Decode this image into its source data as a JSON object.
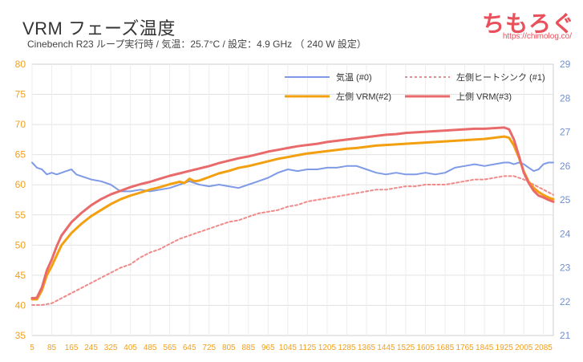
{
  "header": {
    "title": "VRM フェーズ温度",
    "subtitle": "Cinebench R23 ループ実行時 / 気温：25.7°C / 設定：4.9 GHz （ 240 W 設定）",
    "brand": "ちもろぐ",
    "url": "https://chimolog.co/"
  },
  "chart_data": {
    "type": "line",
    "x_ticks": [
      "5",
      "85",
      "165",
      "245",
      "325",
      "405",
      "485",
      "565",
      "645",
      "725",
      "805",
      "885",
      "965",
      "1045",
      "1125",
      "1205",
      "1285",
      "1365",
      "1445",
      "1525",
      "1605",
      "1685",
      "1765",
      "1845",
      "1925",
      "2005",
      "2085"
    ],
    "xlim": [
      5,
      2125
    ],
    "y_left": {
      "ylim": [
        35,
        80
      ],
      "ticks": [
        "35",
        "40",
        "45",
        "50",
        "55",
        "60",
        "65",
        "70",
        "75",
        "80"
      ]
    },
    "y_right": {
      "ylim": [
        21,
        29
      ],
      "ticks": [
        "21",
        "22",
        "23",
        "24",
        "25",
        "26",
        "27",
        "28",
        "29"
      ]
    },
    "grid": true,
    "legend_position": "top-right",
    "series": [
      {
        "name": "気温 (#0)",
        "axis": "right",
        "color": "#7f9ae6",
        "dash": false,
        "x": [
          5,
          25,
          45,
          65,
          85,
          105,
          125,
          145,
          165,
          185,
          205,
          245,
          285,
          325,
          345,
          365,
          405,
          445,
          485,
          525,
          565,
          605,
          645,
          685,
          725,
          765,
          805,
          845,
          885,
          925,
          965,
          1005,
          1045,
          1085,
          1125,
          1165,
          1205,
          1245,
          1285,
          1325,
          1365,
          1405,
          1445,
          1485,
          1525,
          1565,
          1605,
          1645,
          1685,
          1725,
          1765,
          1805,
          1845,
          1885,
          1925,
          1945,
          1965,
          1985,
          2005,
          2025,
          2045,
          2065,
          2085,
          2105,
          2125
        ],
        "y": [
          26.1,
          25.95,
          25.9,
          25.75,
          25.8,
          25.75,
          25.8,
          25.85,
          25.9,
          25.75,
          25.7,
          25.6,
          25.55,
          25.45,
          25.35,
          25.25,
          25.25,
          25.3,
          25.25,
          25.3,
          25.35,
          25.45,
          25.55,
          25.45,
          25.4,
          25.45,
          25.4,
          25.35,
          25.45,
          25.55,
          25.65,
          25.8,
          25.9,
          25.85,
          25.9,
          25.9,
          25.95,
          25.95,
          26.0,
          26.0,
          25.9,
          25.8,
          25.75,
          25.8,
          25.75,
          25.75,
          25.8,
          25.75,
          25.8,
          25.95,
          26.0,
          26.05,
          26.0,
          26.05,
          26.1,
          26.1,
          26.05,
          26.1,
          26.05,
          25.95,
          25.85,
          25.9,
          26.05,
          26.1,
          26.1
        ]
      },
      {
        "name": "左側ヒートシンク (#1)",
        "axis": "right",
        "color": "#ef8a8a",
        "dash": true,
        "x": [
          5,
          45,
          85,
          125,
          165,
          205,
          245,
          285,
          325,
          365,
          405,
          445,
          485,
          525,
          565,
          605,
          645,
          685,
          725,
          765,
          805,
          845,
          885,
          925,
          965,
          1005,
          1045,
          1085,
          1125,
          1165,
          1205,
          1245,
          1285,
          1325,
          1365,
          1405,
          1445,
          1485,
          1525,
          1565,
          1605,
          1645,
          1685,
          1725,
          1765,
          1805,
          1845,
          1885,
          1925,
          1965,
          2005,
          2045,
          2085,
          2125
        ],
        "y": [
          21.9,
          21.9,
          21.95,
          22.1,
          22.25,
          22.4,
          22.55,
          22.7,
          22.85,
          23.0,
          23.1,
          23.3,
          23.45,
          23.55,
          23.7,
          23.85,
          23.95,
          24.05,
          24.15,
          24.25,
          24.35,
          24.4,
          24.5,
          24.6,
          24.65,
          24.7,
          24.8,
          24.85,
          24.95,
          25.0,
          25.05,
          25.1,
          25.15,
          25.2,
          25.25,
          25.3,
          25.3,
          25.35,
          25.4,
          25.4,
          25.45,
          25.45,
          25.45,
          25.5,
          25.55,
          25.6,
          25.6,
          25.65,
          25.7,
          25.7,
          25.6,
          25.45,
          25.3,
          25.15
        ]
      },
      {
        "name": "左側 VRM(#2)",
        "axis": "left",
        "color": "#f2a010",
        "dash": false,
        "x": [
          5,
          15,
          25,
          45,
          65,
          85,
          105,
          125,
          165,
          205,
          245,
          285,
          325,
          365,
          405,
          445,
          485,
          525,
          565,
          605,
          625,
          645,
          665,
          685,
          725,
          765,
          805,
          845,
          885,
          925,
          965,
          1005,
          1045,
          1085,
          1125,
          1165,
          1205,
          1245,
          1285,
          1325,
          1365,
          1405,
          1445,
          1485,
          1525,
          1565,
          1605,
          1645,
          1685,
          1725,
          1765,
          1805,
          1845,
          1885,
          1925,
          1945,
          1965,
          1985,
          2005,
          2025,
          2045,
          2065,
          2085,
          2105,
          2125
        ],
        "y": [
          41.0,
          41.0,
          41.0,
          42.5,
          45.0,
          46.5,
          48.3,
          50.0,
          52.0,
          53.5,
          54.8,
          55.8,
          56.8,
          57.6,
          58.2,
          58.7,
          59.2,
          59.6,
          60.1,
          60.5,
          60.3,
          61.0,
          60.6,
          60.7,
          61.3,
          61.9,
          62.3,
          62.8,
          63.1,
          63.5,
          63.9,
          64.3,
          64.6,
          64.9,
          65.2,
          65.4,
          65.6,
          65.8,
          66.0,
          66.1,
          66.3,
          66.5,
          66.6,
          66.7,
          66.8,
          66.9,
          67.0,
          67.1,
          67.2,
          67.3,
          67.4,
          67.5,
          67.6,
          67.8,
          68.0,
          67.8,
          66.5,
          64.5,
          62.2,
          60.5,
          59.5,
          58.8,
          58.3,
          57.9,
          57.6
        ]
      },
      {
        "name": "上側 VRM(#3)",
        "axis": "left",
        "color": "#e96a6a",
        "dash": false,
        "x": [
          5,
          15,
          25,
          45,
          65,
          85,
          105,
          125,
          165,
          205,
          245,
          285,
          325,
          365,
          405,
          445,
          485,
          525,
          565,
          605,
          645,
          685,
          725,
          765,
          805,
          845,
          885,
          925,
          965,
          1005,
          1045,
          1085,
          1125,
          1165,
          1205,
          1245,
          1285,
          1325,
          1365,
          1405,
          1445,
          1485,
          1525,
          1565,
          1605,
          1645,
          1685,
          1725,
          1765,
          1805,
          1845,
          1885,
          1925,
          1945,
          1965,
          1985,
          2005,
          2025,
          2045,
          2065,
          2085,
          2105,
          2125
        ],
        "y": [
          41.2,
          41.2,
          41.3,
          43.0,
          45.8,
          47.6,
          49.8,
          51.6,
          53.8,
          55.3,
          56.6,
          57.6,
          58.4,
          59.0,
          59.6,
          60.1,
          60.5,
          61.0,
          61.5,
          61.9,
          62.3,
          62.7,
          63.1,
          63.6,
          64.0,
          64.4,
          64.7,
          65.1,
          65.5,
          65.8,
          66.1,
          66.4,
          66.6,
          66.8,
          67.1,
          67.3,
          67.5,
          67.7,
          67.9,
          68.1,
          68.3,
          68.4,
          68.6,
          68.7,
          68.8,
          68.9,
          69.0,
          69.1,
          69.2,
          69.3,
          69.3,
          69.4,
          69.5,
          69.2,
          67.5,
          64.8,
          62.0,
          60.3,
          59.0,
          58.2,
          57.9,
          57.5,
          57.2
        ]
      }
    ]
  }
}
